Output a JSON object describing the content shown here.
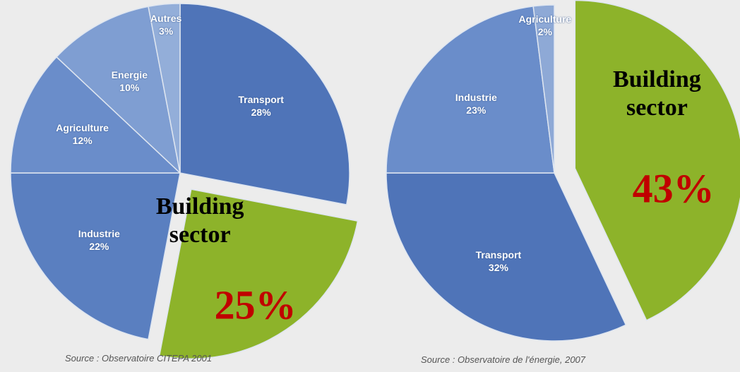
{
  "chart_data": [
    {
      "type": "pie",
      "categories": [
        "Transport",
        "Building sector",
        "Industrie",
        "Agriculture",
        "Energie",
        "Autres"
      ],
      "values": [
        28,
        25,
        22,
        12,
        10,
        3
      ],
      "value_labels": [
        "28%",
        "25%",
        "22%",
        "12%",
        "10%",
        "3%"
      ],
      "colors": [
        "#4f74b8",
        "#8db32a",
        "#5a7fc0",
        "#6a8dca",
        "#7f9ed2",
        "#93aed9"
      ],
      "source": "Source : Observatoire CITEPA 2001"
    },
    {
      "type": "pie",
      "categories": [
        "Building sector",
        "Transport",
        "Industrie",
        "Agriculture"
      ],
      "values": [
        43,
        32,
        23,
        2
      ],
      "value_labels": [
        "43%",
        "32%",
        "23%",
        "2%"
      ],
      "colors": [
        "#8db32a",
        "#4f74b8",
        "#6a8dca",
        "#8ea9d6"
      ],
      "source": "Source : Observatoire de l'énergie, 2007"
    }
  ]
}
